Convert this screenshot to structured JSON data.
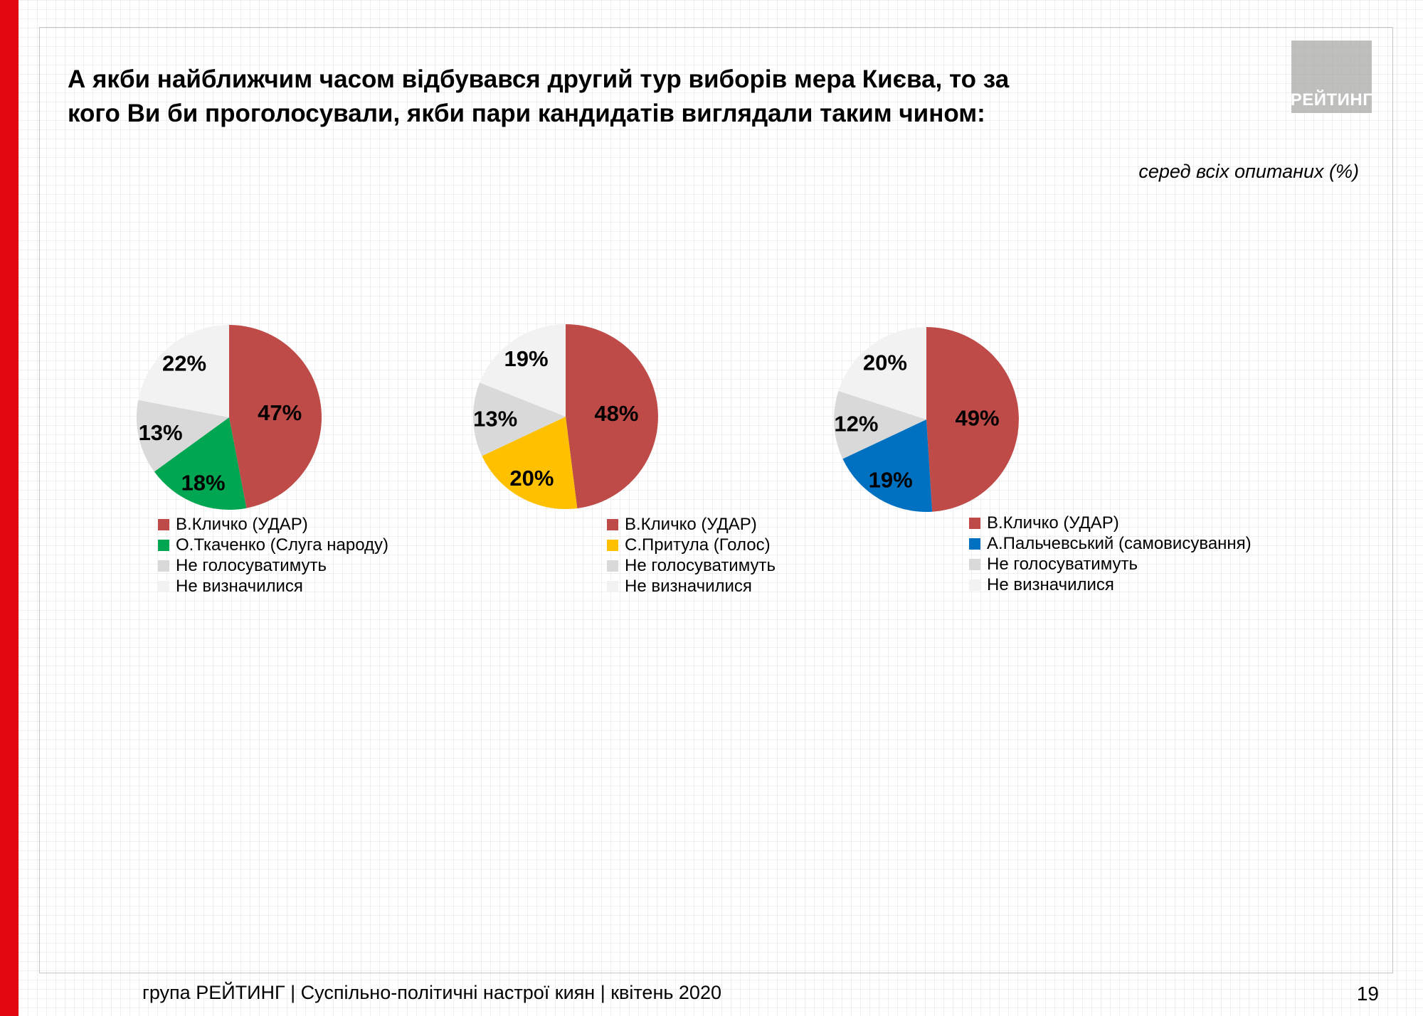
{
  "slide": {
    "title": "А якби найближчим часом відбувався другий тур виборів мера Києва, то за кого Ви би проголосували, якби пари кандидатів виглядали таким чином:",
    "note": "серед всіх опитаних (%)",
    "logo_text": "РЕЙТИНГ",
    "footer": "група РЕЙТИНГ | Суспільно-політичні настрої киян | квітень 2020",
    "page_number": "19"
  },
  "colors": {
    "red": "#BE4B48",
    "green": "#00A651",
    "yellow": "#FFC000",
    "blue": "#0070C0",
    "gray": "#D9D9D9",
    "light": "#F2F2F2",
    "stripe": "#E30613",
    "label": "#000000"
  },
  "chart_data": [
    {
      "type": "pie",
      "start_angle_deg": 0,
      "direction": "clockwise",
      "legend_position": "bottom",
      "labels": [
        "В.Кличко (УДАР)",
        "О.Ткаченко (Слуга народу)",
        "Не голосуватимуть",
        "Не визначилися"
      ],
      "values": [
        47,
        18,
        13,
        22
      ],
      "value_labels": [
        "47%",
        "18%",
        "13%",
        "22%"
      ],
      "colors": [
        "red",
        "green",
        "gray",
        "light"
      ]
    },
    {
      "type": "pie",
      "start_angle_deg": 0,
      "direction": "clockwise",
      "legend_position": "bottom",
      "labels": [
        "В.Кличко (УДАР)",
        "С.Притула (Голос)",
        "Не голосуватимуть",
        "Не визначилися"
      ],
      "values": [
        48,
        20,
        13,
        19
      ],
      "value_labels": [
        "48%",
        "20%",
        "13%",
        "19%"
      ],
      "colors": [
        "red",
        "yellow",
        "gray",
        "light"
      ]
    },
    {
      "type": "pie",
      "start_angle_deg": 0,
      "direction": "clockwise",
      "legend_position": "bottom",
      "labels": [
        "В.Кличко (УДАР)",
        "А.Пальчевський (самовисування)",
        "Не голосуватимуть",
        "Не визначилися"
      ],
      "values": [
        49,
        19,
        12,
        20
      ],
      "value_labels": [
        "49%",
        "19%",
        "12%",
        "20%"
      ],
      "colors": [
        "red",
        "blue",
        "gray",
        "light"
      ]
    }
  ]
}
